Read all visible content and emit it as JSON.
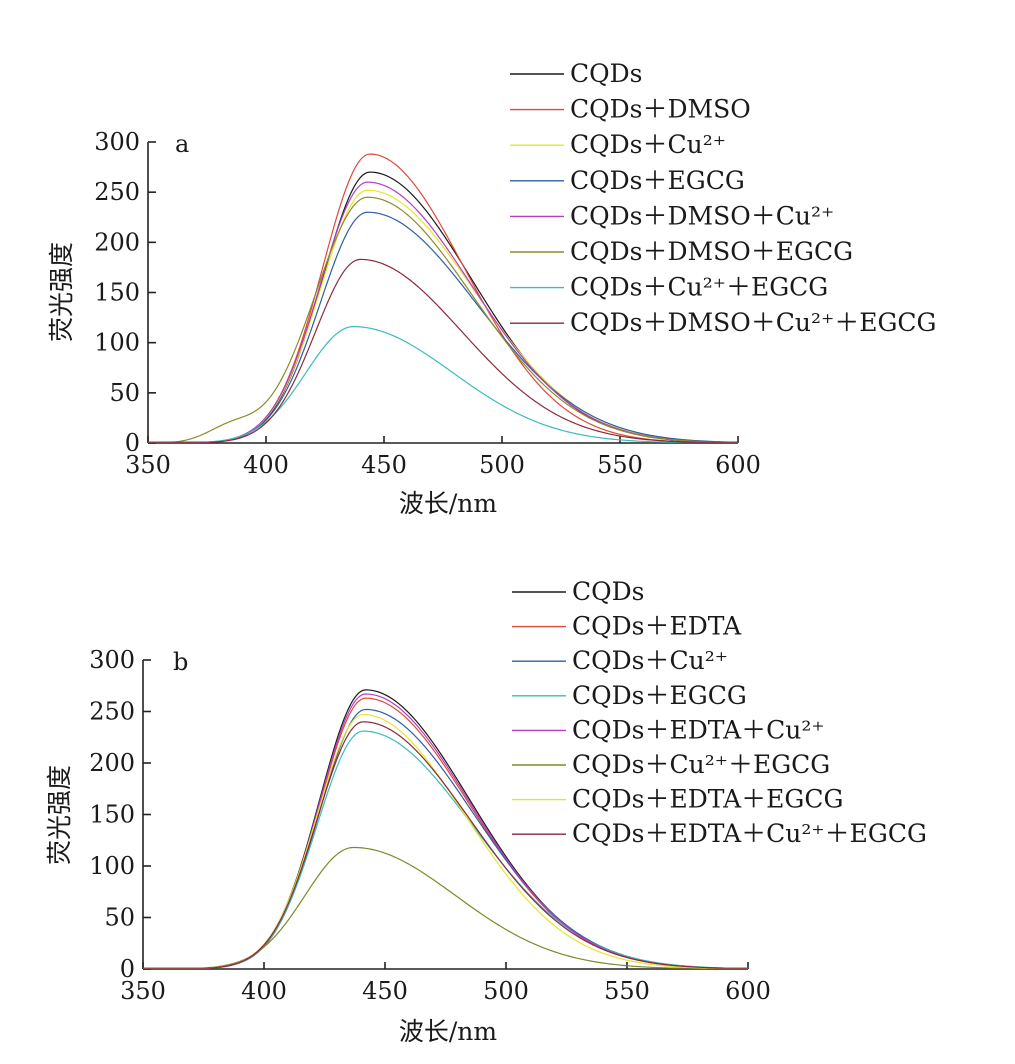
{
  "chart_data": [
    {
      "type": "line",
      "panel_label": "a",
      "xlabel": "波长/nm",
      "ylabel": "荧光强度",
      "xlim": [
        350,
        600
      ],
      "ylim": [
        0,
        300
      ],
      "xticks": [
        350,
        400,
        450,
        500,
        550,
        600
      ],
      "yticks": [
        0,
        50,
        100,
        150,
        200,
        250,
        300
      ],
      "legend_position": "top-right",
      "series": [
        {
          "name": "CQDs",
          "color": "#1a1a1a",
          "peak_x": 444,
          "peak_y": 270,
          "sigma_left": 20,
          "sigma_right": 43,
          "shoulder": 0
        },
        {
          "name": "CQDs＋DMSO",
          "color": "#e0483a",
          "peak_x": 444,
          "peak_y": 288,
          "sigma_left": 20,
          "sigma_right": 40,
          "shoulder": 0
        },
        {
          "name": "CQDs＋Cu²⁺",
          "color": "#e6e62e",
          "peak_x": 443,
          "peak_y": 252,
          "sigma_left": 20,
          "sigma_right": 45,
          "shoulder": 0
        },
        {
          "name": "CQDs＋EGCG",
          "color": "#2e5fa0",
          "peak_x": 443,
          "peak_y": 230,
          "sigma_left": 20,
          "sigma_right": 46,
          "shoulder": 0
        },
        {
          "name": "CQDs＋DMSO＋Cu²⁺",
          "color": "#b43ec4",
          "peak_x": 443,
          "peak_y": 260,
          "sigma_left": 20,
          "sigma_right": 44,
          "shoulder": 0
        },
        {
          "name": "CQDs＋DMSO＋EGCG",
          "color": "#8c8c2a",
          "peak_x": 443,
          "peak_y": 245,
          "sigma_left": 22,
          "sigma_right": 44,
          "shoulder": 14
        },
        {
          "name": "CQDs＋Cu²⁺＋EGCG",
          "color": "#3cbcbc",
          "peak_x": 437,
          "peak_y": 116,
          "sigma_left": 20,
          "sigma_right": 42,
          "shoulder": 0
        },
        {
          "name": "CQDs＋DMSO＋Cu²⁺＋EGCG",
          "color": "#8a2a3a",
          "peak_x": 440,
          "peak_y": 183,
          "sigma_left": 19,
          "sigma_right": 43,
          "shoulder": 0
        }
      ]
    },
    {
      "type": "line",
      "panel_label": "b",
      "xlabel": "波长/nm",
      "ylabel": "荧光强度",
      "xlim": [
        350,
        600
      ],
      "ylim": [
        0,
        300
      ],
      "xticks": [
        350,
        400,
        450,
        500,
        550,
        600
      ],
      "yticks": [
        0,
        50,
        100,
        150,
        200,
        250,
        300
      ],
      "legend_position": "top-right",
      "series": [
        {
          "name": "CQDs",
          "color": "#1a1a1a",
          "peak_x": 442,
          "peak_y": 271,
          "sigma_left": 19,
          "sigma_right": 43,
          "shoulder": 0
        },
        {
          "name": "CQDs＋EDTA",
          "color": "#e0483a",
          "peak_x": 442,
          "peak_y": 263,
          "sigma_left": 19,
          "sigma_right": 43,
          "shoulder": 0
        },
        {
          "name": "CQDs＋Cu²⁺",
          "color": "#2e5fa0",
          "peak_x": 442,
          "peak_y": 252,
          "sigma_left": 19,
          "sigma_right": 44,
          "shoulder": 0
        },
        {
          "name": "CQDs＋EGCG",
          "color": "#3cbcbc",
          "peak_x": 441,
          "peak_y": 231,
          "sigma_left": 19,
          "sigma_right": 45,
          "shoulder": 0
        },
        {
          "name": "CQDs＋EDTA＋Cu²⁺",
          "color": "#b43ec4",
          "peak_x": 442,
          "peak_y": 267,
          "sigma_left": 19,
          "sigma_right": 43,
          "shoulder": 0
        },
        {
          "name": "CQDs＋Cu²⁺＋EGCG",
          "color": "#7e8a2a",
          "peak_x": 437,
          "peak_y": 118,
          "sigma_left": 20,
          "sigma_right": 42,
          "shoulder": 0
        },
        {
          "name": "CQDs＋EDTA＋EGCG",
          "color": "#e6e62e",
          "peak_x": 441,
          "peak_y": 247,
          "sigma_left": 19,
          "sigma_right": 42,
          "shoulder": 0
        },
        {
          "name": "CQDs＋EDTA＋Cu²⁺＋EGCG",
          "color": "#8a2a3a",
          "peak_x": 441,
          "peak_y": 240,
          "sigma_left": 19,
          "sigma_right": 44,
          "shoulder": 0
        }
      ]
    }
  ]
}
